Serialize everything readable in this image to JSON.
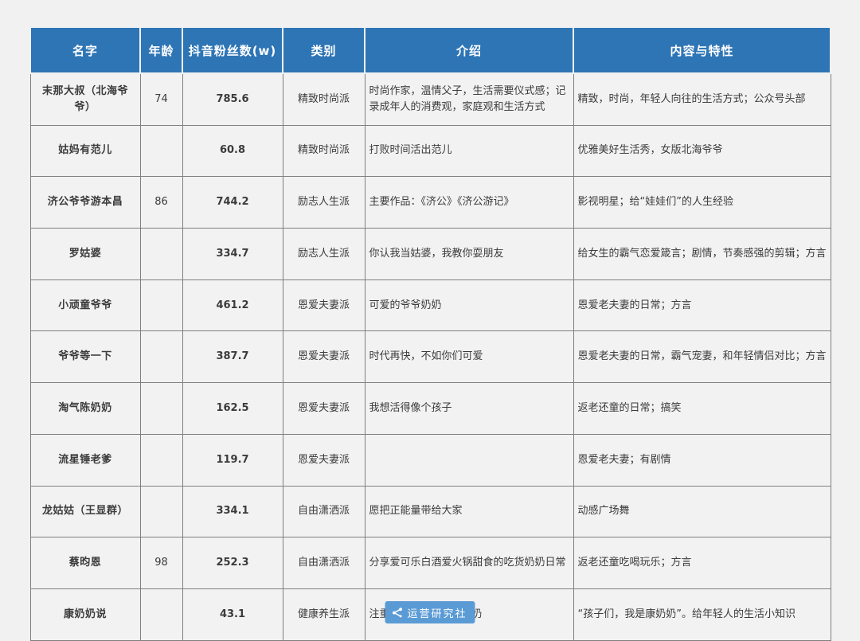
{
  "page": {
    "background": "#f1f1f2",
    "header_bg": "#2E75B5",
    "header_text_color": "#ffffff",
    "cell_bg": "#f2f2f2",
    "border_color": "#7f7f7f"
  },
  "table": {
    "columns": [
      {
        "key": "name",
        "label": "名字"
      },
      {
        "key": "age",
        "label": "年龄"
      },
      {
        "key": "followers",
        "label": "抖音粉丝数(w)"
      },
      {
        "key": "category",
        "label": "类别"
      },
      {
        "key": "intro",
        "label": "介绍"
      },
      {
        "key": "features",
        "label": "内容与特性"
      }
    ],
    "rows": [
      {
        "name": "末那大叔（北海爷爷）",
        "age": "74",
        "followers": "785.6",
        "category": "精致时尚派",
        "intro": "时尚作家，温情父子，生活需要仪式感；记录成年人的消费观，家庭观和生活方式",
        "features": "精致，时尚，年轻人向往的生活方式；公众号头部"
      },
      {
        "name": "姑妈有范儿",
        "age": "",
        "followers": "60.8",
        "category": "精致时尚派",
        "intro": "打败时间活出范儿",
        "features": "优雅美好生活秀，女版北海爷爷"
      },
      {
        "name": "济公爷爷游本昌",
        "age": "86",
        "followers": "744.2",
        "category": "励志人生派",
        "intro": "主要作品：《济公》《济公游记》",
        "features": "影视明星；给“娃娃们”的人生经验"
      },
      {
        "name": "罗姑婆",
        "age": "",
        "followers": "334.7",
        "category": "励志人生派",
        "intro": "你认我当姑婆，我教你耍朋友",
        "features": "给女生的霸气恋爱箴言；剧情，节奏感强的剪辑；方言"
      },
      {
        "name": "小顽童爷爷",
        "age": "",
        "followers": "461.2",
        "category": "恩爱夫妻派",
        "intro": "可爱的爷爷奶奶",
        "features": "恩爱老夫妻的日常；方言"
      },
      {
        "name": "爷爷等一下",
        "age": "",
        "followers": "387.7",
        "category": "恩爱夫妻派",
        "intro": "时代再快，不如你们可爱",
        "features": "恩爱老夫妻的日常，霸气宠妻，和年轻情侣对比；方言"
      },
      {
        "name": "淘气陈奶奶",
        "age": "",
        "followers": "162.5",
        "category": "恩爱夫妻派",
        "intro": "我想活得像个孩子",
        "features": "返老还童的日常；搞笑"
      },
      {
        "name": "流星锤老爹",
        "age": "",
        "followers": "119.7",
        "category": "恩爱夫妻派",
        "intro": "",
        "features": "恩爱老夫妻；有剧情"
      },
      {
        "name": "龙姑姑（王显群）",
        "age": "",
        "followers": "334.1",
        "category": "自由潇洒派",
        "intro": "愿把正能量带给大家",
        "features": "动感广场舞"
      },
      {
        "name": "蔡昀恩",
        "age": "98",
        "followers": "252.3",
        "category": "自由潇洒派",
        "intro": "分享爱可乐白酒爱火锅甜食的吃货奶奶日常",
        "features": "返老还童吃喝玩乐；方言"
      },
      {
        "name": "康奶奶说",
        "age": "",
        "followers": "43.1",
        "category": "健康养生派",
        "intro": "注重健康的 80 岁康奶奶",
        "features": "“孩子们，我是康奶奶”。给年轻人的生活小知识"
      }
    ]
  },
  "footer": {
    "logo_text": "运营研究社",
    "logo_bg": "#5B9BD5",
    "icon": "share-icon"
  }
}
